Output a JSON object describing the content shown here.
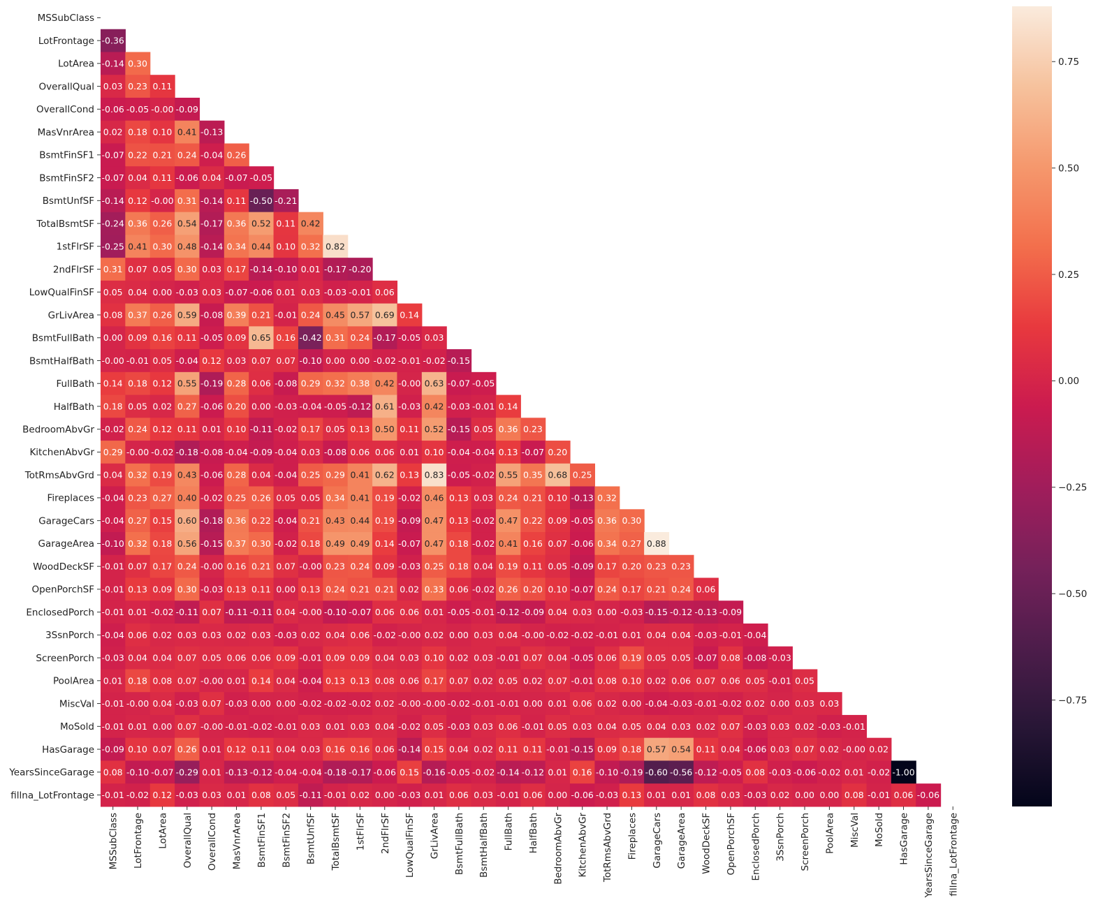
{
  "chart_data": {
    "type": "heatmap",
    "title": "",
    "xlabel": "",
    "ylabel": "",
    "mask": "upper-triangle",
    "labels": [
      "MSSubClass",
      "LotFrontage",
      "LotArea",
      "OverallQual",
      "OverallCond",
      "MasVnrArea",
      "BsmtFinSF1",
      "BsmtFinSF2",
      "BsmtUnfSF",
      "TotalBsmtSF",
      "1stFlrSF",
      "2ndFlrSF",
      "LowQualFinSF",
      "GrLivArea",
      "BsmtFullBath",
      "BsmtHalfBath",
      "FullBath",
      "HalfBath",
      "BedroomAbvGr",
      "KitchenAbvGr",
      "TotRmsAbvGrd",
      "Fireplaces",
      "GarageCars",
      "GarageArea",
      "WoodDeckSF",
      "OpenPorchSF",
      "EnclosedPorch",
      "3SsnPorch",
      "ScreenPorch",
      "PoolArea",
      "MiscVal",
      "MoSold",
      "HasGarage",
      "YearsSinceGarage",
      "fillna_LotFrontage"
    ],
    "rows": [
      [],
      [
        "-0.36"
      ],
      [
        "-0.14",
        "0.30"
      ],
      [
        "0.03",
        "0.23",
        "0.11"
      ],
      [
        "-0.06",
        "-0.05",
        "-0.00",
        "-0.09"
      ],
      [
        "0.02",
        "0.18",
        "0.10",
        "0.41",
        "-0.13"
      ],
      [
        "-0.07",
        "0.22",
        "0.21",
        "0.24",
        "-0.04",
        "0.26"
      ],
      [
        "-0.07",
        "0.04",
        "0.11",
        "-0.06",
        "0.04",
        "-0.07",
        "-0.05"
      ],
      [
        "-0.14",
        "0.12",
        "-0.00",
        "0.31",
        "-0.14",
        "0.11",
        "-0.50",
        "-0.21"
      ],
      [
        "-0.24",
        "0.36",
        "0.26",
        "0.54",
        "-0.17",
        "0.36",
        "0.52",
        "0.11",
        "0.42"
      ],
      [
        "-0.25",
        "0.41",
        "0.30",
        "0.48",
        "-0.14",
        "0.34",
        "0.44",
        "0.10",
        "0.32",
        "0.82"
      ],
      [
        "0.31",
        "0.07",
        "0.05",
        "0.30",
        "0.03",
        "0.17",
        "-0.14",
        "-0.10",
        "0.01",
        "-0.17",
        "-0.20"
      ],
      [
        "0.05",
        "0.04",
        "0.00",
        "-0.03",
        "0.03",
        "-0.07",
        "-0.06",
        "0.01",
        "0.03",
        "-0.03",
        "-0.01",
        "0.06"
      ],
      [
        "0.08",
        "0.37",
        "0.26",
        "0.59",
        "-0.08",
        "0.39",
        "0.21",
        "-0.01",
        "0.24",
        "0.45",
        "0.57",
        "0.69",
        "0.14"
      ],
      [
        "0.00",
        "0.09",
        "0.16",
        "0.11",
        "-0.05",
        "0.09",
        "0.65",
        "0.16",
        "-0.42",
        "0.31",
        "0.24",
        "-0.17",
        "-0.05",
        "0.03"
      ],
      [
        "-0.00",
        "-0.01",
        "0.05",
        "-0.04",
        "0.12",
        "0.03",
        "0.07",
        "0.07",
        "-0.10",
        "0.00",
        "0.00",
        "-0.02",
        "-0.01",
        "-0.02",
        "-0.15"
      ],
      [
        "0.14",
        "0.18",
        "0.12",
        "0.55",
        "-0.19",
        "0.28",
        "0.06",
        "-0.08",
        "0.29",
        "0.32",
        "0.38",
        "0.42",
        "-0.00",
        "0.63",
        "-0.07",
        "-0.05"
      ],
      [
        "0.18",
        "0.05",
        "0.02",
        "0.27",
        "-0.06",
        "0.20",
        "0.00",
        "-0.03",
        "-0.04",
        "-0.05",
        "-0.12",
        "0.61",
        "-0.03",
        "0.42",
        "-0.03",
        "-0.01",
        "0.14"
      ],
      [
        "-0.02",
        "0.24",
        "0.12",
        "0.11",
        "0.01",
        "0.10",
        "-0.11",
        "-0.02",
        "0.17",
        "0.05",
        "0.13",
        "0.50",
        "0.11",
        "0.52",
        "-0.15",
        "0.05",
        "0.36",
        "0.23"
      ],
      [
        "0.29",
        "-0.00",
        "-0.02",
        "-0.18",
        "-0.08",
        "-0.04",
        "-0.09",
        "-0.04",
        "0.03",
        "-0.08",
        "0.06",
        "0.06",
        "0.01",
        "0.10",
        "-0.04",
        "-0.04",
        "0.13",
        "-0.07",
        "0.20"
      ],
      [
        "0.04",
        "0.32",
        "0.19",
        "0.43",
        "-0.06",
        "0.28",
        "0.04",
        "-0.04",
        "0.25",
        "0.29",
        "0.41",
        "0.62",
        "0.13",
        "0.83",
        "-0.05",
        "-0.02",
        "0.55",
        "0.35",
        "0.68",
        "0.25"
      ],
      [
        "-0.04",
        "0.23",
        "0.27",
        "0.40",
        "-0.02",
        "0.25",
        "0.26",
        "0.05",
        "0.05",
        "0.34",
        "0.41",
        "0.19",
        "-0.02",
        "0.46",
        "0.13",
        "0.03",
        "0.24",
        "0.21",
        "0.10",
        "-0.13",
        "0.32"
      ],
      [
        "-0.04",
        "0.27",
        "0.15",
        "0.60",
        "-0.18",
        "0.36",
        "0.22",
        "-0.04",
        "0.21",
        "0.43",
        "0.44",
        "0.19",
        "-0.09",
        "0.47",
        "0.13",
        "-0.02",
        "0.47",
        "0.22",
        "0.09",
        "-0.05",
        "0.36",
        "0.30"
      ],
      [
        "-0.10",
        "0.32",
        "0.18",
        "0.56",
        "-0.15",
        "0.37",
        "0.30",
        "-0.02",
        "0.18",
        "0.49",
        "0.49",
        "0.14",
        "-0.07",
        "0.47",
        "0.18",
        "-0.02",
        "0.41",
        "0.16",
        "0.07",
        "-0.06",
        "0.34",
        "0.27",
        "0.88"
      ],
      [
        "-0.01",
        "0.07",
        "0.17",
        "0.24",
        "-0.00",
        "0.16",
        "0.21",
        "0.07",
        "-0.00",
        "0.23",
        "0.24",
        "0.09",
        "-0.03",
        "0.25",
        "0.18",
        "0.04",
        "0.19",
        "0.11",
        "0.05",
        "-0.09",
        "0.17",
        "0.20",
        "0.23",
        "0.23"
      ],
      [
        "-0.01",
        "0.13",
        "0.09",
        "0.30",
        "-0.03",
        "0.13",
        "0.11",
        "0.00",
        "0.13",
        "0.24",
        "0.21",
        "0.21",
        "0.02",
        "0.33",
        "0.06",
        "-0.02",
        "0.26",
        "0.20",
        "0.10",
        "-0.07",
        "0.24",
        "0.17",
        "0.21",
        "0.24",
        "0.06"
      ],
      [
        "-0.01",
        "0.01",
        "-0.02",
        "-0.11",
        "0.07",
        "-0.11",
        "-0.11",
        "0.04",
        "-0.00",
        "-0.10",
        "-0.07",
        "0.06",
        "0.06",
        "0.01",
        "-0.05",
        "-0.01",
        "-0.12",
        "-0.09",
        "0.04",
        "0.03",
        "0.00",
        "-0.03",
        "-0.15",
        "-0.12",
        "-0.13",
        "-0.09"
      ],
      [
        "-0.04",
        "0.06",
        "0.02",
        "0.03",
        "0.03",
        "0.02",
        "0.03",
        "-0.03",
        "0.02",
        "0.04",
        "0.06",
        "-0.02",
        "-0.00",
        "0.02",
        "0.00",
        "0.03",
        "0.04",
        "-0.00",
        "-0.02",
        "-0.02",
        "-0.01",
        "0.01",
        "0.04",
        "0.04",
        "-0.03",
        "-0.01",
        "-0.04"
      ],
      [
        "-0.03",
        "0.04",
        "0.04",
        "0.07",
        "0.05",
        "0.06",
        "0.06",
        "0.09",
        "-0.01",
        "0.09",
        "0.09",
        "0.04",
        "0.03",
        "0.10",
        "0.02",
        "0.03",
        "-0.01",
        "0.07",
        "0.04",
        "-0.05",
        "0.06",
        "0.19",
        "0.05",
        "0.05",
        "-0.07",
        "0.08",
        "-0.08",
        "-0.03"
      ],
      [
        "0.01",
        "0.18",
        "0.08",
        "0.07",
        "-0.00",
        "0.01",
        "0.14",
        "0.04",
        "-0.04",
        "0.13",
        "0.13",
        "0.08",
        "0.06",
        "0.17",
        "0.07",
        "0.02",
        "0.05",
        "0.02",
        "0.07",
        "-0.01",
        "0.08",
        "0.10",
        "0.02",
        "0.06",
        "0.07",
        "0.06",
        "0.05",
        "-0.01",
        "0.05"
      ],
      [
        "-0.01",
        "-0.00",
        "0.04",
        "-0.03",
        "0.07",
        "-0.03",
        "0.00",
        "0.00",
        "-0.02",
        "-0.02",
        "-0.02",
        "0.02",
        "-0.00",
        "-0.00",
        "-0.02",
        "-0.01",
        "-0.01",
        "0.00",
        "0.01",
        "0.06",
        "0.02",
        "0.00",
        "-0.04",
        "-0.03",
        "-0.01",
        "-0.02",
        "0.02",
        "0.00",
        "0.03",
        "0.03"
      ],
      [
        "-0.01",
        "0.01",
        "0.00",
        "0.07",
        "-0.00",
        "-0.01",
        "-0.02",
        "-0.01",
        "0.03",
        "0.01",
        "0.03",
        "0.04",
        "-0.02",
        "0.05",
        "-0.03",
        "0.03",
        "0.06",
        "-0.01",
        "0.05",
        "0.03",
        "0.04",
        "0.05",
        "0.04",
        "0.03",
        "0.02",
        "0.07",
        "-0.03",
        "0.03",
        "0.02",
        "-0.03",
        "-0.01"
      ],
      [
        "-0.09",
        "0.10",
        "0.07",
        "0.26",
        "0.01",
        "0.12",
        "0.11",
        "0.04",
        "0.03",
        "0.16",
        "0.16",
        "0.06",
        "-0.14",
        "0.15",
        "0.04",
        "0.02",
        "0.11",
        "0.11",
        "-0.01",
        "-0.15",
        "0.09",
        "0.18",
        "0.57",
        "0.54",
        "0.11",
        "0.04",
        "-0.06",
        "0.03",
        "0.07",
        "0.02",
        "-0.00",
        "0.02"
      ],
      [
        "0.08",
        "-0.10",
        "-0.07",
        "-0.29",
        "0.01",
        "-0.13",
        "-0.12",
        "-0.04",
        "-0.04",
        "-0.18",
        "-0.17",
        "-0.06",
        "0.15",
        "-0.16",
        "-0.05",
        "-0.02",
        "-0.14",
        "-0.12",
        "0.01",
        "0.16",
        "-0.10",
        "-0.19",
        "-0.60",
        "-0.56",
        "-0.12",
        "-0.05",
        "0.08",
        "-0.03",
        "-0.06",
        "-0.02",
        "0.01",
        "-0.02",
        "-1.00"
      ],
      [
        "-0.01",
        "-0.02",
        "0.12",
        "-0.03",
        "0.03",
        "0.01",
        "0.08",
        "0.05",
        "-0.11",
        "-0.01",
        "0.02",
        "0.00",
        "-0.03",
        "0.01",
        "0.06",
        "0.03",
        "-0.01",
        "0.06",
        "0.00",
        "-0.06",
        "-0.03",
        "0.13",
        "0.01",
        "0.01",
        "0.08",
        "0.03",
        "-0.03",
        "0.02",
        "0.00",
        "0.00",
        "0.08",
        "-0.01",
        "0.06",
        "-0.06"
      ]
    ],
    "colorbar": {
      "colormap": "rocket",
      "vmin": -1.0,
      "vmax": 0.88,
      "ticks": [
        "0.75",
        "0.50",
        "0.25",
        "0.00",
        "−0.25",
        "−0.50",
        "−0.75"
      ]
    }
  }
}
